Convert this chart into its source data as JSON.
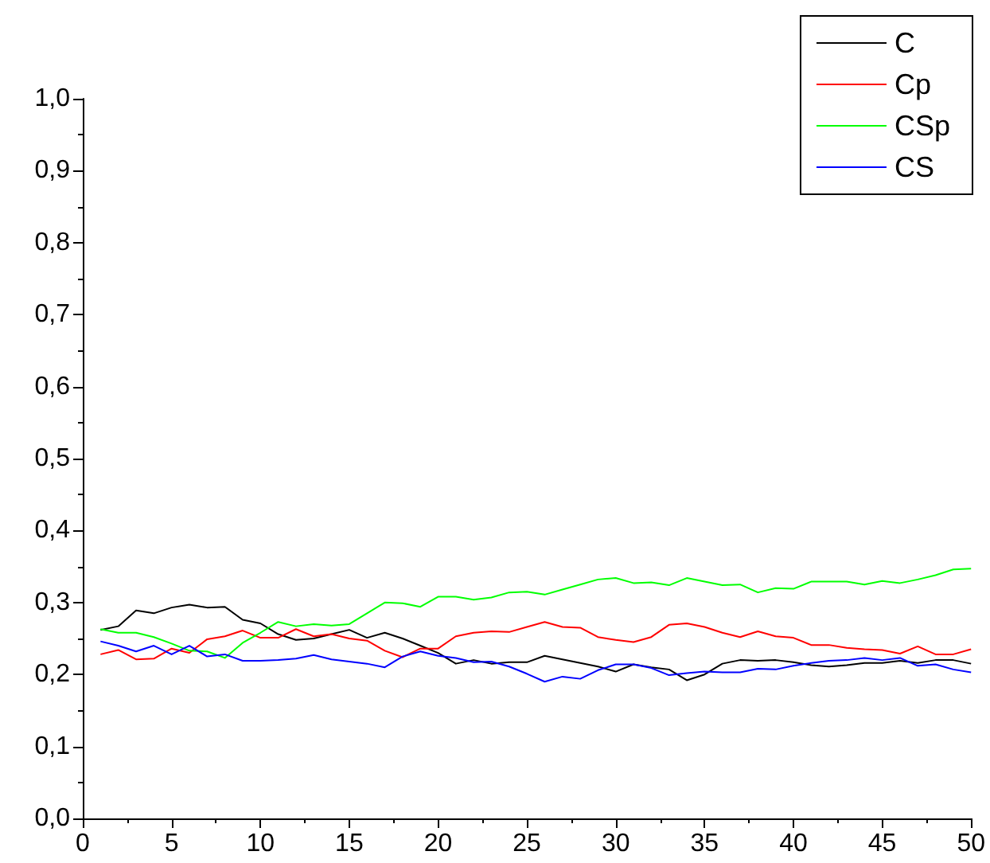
{
  "chart_data": {
    "type": "line",
    "x": [
      1,
      2,
      3,
      4,
      5,
      6,
      7,
      8,
      9,
      10,
      11,
      12,
      13,
      14,
      15,
      16,
      17,
      18,
      19,
      20,
      21,
      22,
      23,
      24,
      25,
      26,
      27,
      28,
      29,
      30,
      31,
      32,
      33,
      34,
      35,
      36,
      37,
      38,
      39,
      40,
      41,
      42,
      43,
      44,
      45,
      46,
      47,
      48,
      49,
      50
    ],
    "series": [
      {
        "name": "C",
        "color": "#000000",
        "values": [
          0.262,
          0.267,
          0.289,
          0.285,
          0.293,
          0.297,
          0.293,
          0.294,
          0.276,
          0.271,
          0.256,
          0.248,
          0.25,
          0.256,
          0.262,
          0.251,
          0.258,
          0.25,
          0.24,
          0.23,
          0.215,
          0.22,
          0.215,
          0.217,
          0.217,
          0.226,
          0.221,
          0.216,
          0.211,
          0.204,
          0.214,
          0.21,
          0.207,
          0.192,
          0.2,
          0.215,
          0.22,
          0.219,
          0.22,
          0.217,
          0.213,
          0.211,
          0.213,
          0.216,
          0.216,
          0.219,
          0.216,
          0.22,
          0.22,
          0.215
        ]
      },
      {
        "name": "Cp",
        "color": "#ff0000",
        "values": [
          0.228,
          0.234,
          0.221,
          0.222,
          0.236,
          0.23,
          0.249,
          0.253,
          0.261,
          0.251,
          0.251,
          0.263,
          0.253,
          0.256,
          0.25,
          0.247,
          0.233,
          0.224,
          0.236,
          0.236,
          0.253,
          0.258,
          0.26,
          0.259,
          0.266,
          0.273,
          0.266,
          0.265,
          0.252,
          0.248,
          0.245,
          0.252,
          0.269,
          0.271,
          0.266,
          0.258,
          0.252,
          0.26,
          0.253,
          0.251,
          0.241,
          0.241,
          0.237,
          0.235,
          0.234,
          0.229,
          0.239,
          0.228,
          0.228,
          0.235
        ]
      },
      {
        "name": "CSp",
        "color": "#00ff00",
        "values": [
          0.263,
          0.258,
          0.258,
          0.252,
          0.243,
          0.233,
          0.232,
          0.223,
          0.244,
          0.258,
          0.273,
          0.267,
          0.27,
          0.268,
          0.27,
          0.285,
          0.3,
          0.299,
          0.294,
          0.308,
          0.308,
          0.304,
          0.307,
          0.314,
          0.315,
          0.311,
          0.318,
          0.325,
          0.332,
          0.334,
          0.327,
          0.328,
          0.324,
          0.334,
          0.329,
          0.324,
          0.325,
          0.314,
          0.32,
          0.319,
          0.329,
          0.329,
          0.329,
          0.325,
          0.33,
          0.327,
          0.332,
          0.338,
          0.346,
          0.347
        ]
      },
      {
        "name": "CS",
        "color": "#0000ff",
        "values": [
          0.246,
          0.24,
          0.232,
          0.24,
          0.228,
          0.24,
          0.225,
          0.228,
          0.219,
          0.219,
          0.22,
          0.222,
          0.227,
          0.221,
          0.218,
          0.215,
          0.21,
          0.225,
          0.232,
          0.226,
          0.223,
          0.217,
          0.218,
          0.211,
          0.201,
          0.19,
          0.197,
          0.194,
          0.206,
          0.214,
          0.214,
          0.209,
          0.199,
          0.202,
          0.204,
          0.203,
          0.203,
          0.208,
          0.207,
          0.212,
          0.216,
          0.219,
          0.22,
          0.223,
          0.22,
          0.223,
          0.212,
          0.214,
          0.207,
          0.203
        ]
      }
    ],
    "xlim": [
      0,
      50
    ],
    "xticks": [
      0,
      5,
      10,
      15,
      20,
      25,
      30,
      35,
      40,
      45,
      50
    ],
    "ylim": [
      0,
      1.0
    ],
    "yticks": [
      {
        "value": 0,
        "label": "0,0"
      },
      {
        "value": 0.1,
        "label": "0,1"
      },
      {
        "value": 0.2,
        "label": "0,2"
      },
      {
        "value": 0.3,
        "label": "0,3"
      },
      {
        "value": 0.4,
        "label": "0,4"
      },
      {
        "value": 0.5,
        "label": "0,5"
      },
      {
        "value": 0.6,
        "label": "0,6"
      },
      {
        "value": 0.7,
        "label": "0,7"
      },
      {
        "value": 0.8,
        "label": "0,8"
      },
      {
        "value": 0.9,
        "label": "0,9"
      },
      {
        "value": 1.0,
        "label": "1,0"
      }
    ],
    "grid": false,
    "legend": "top right",
    "marker": "none",
    "line_style": "solid"
  }
}
